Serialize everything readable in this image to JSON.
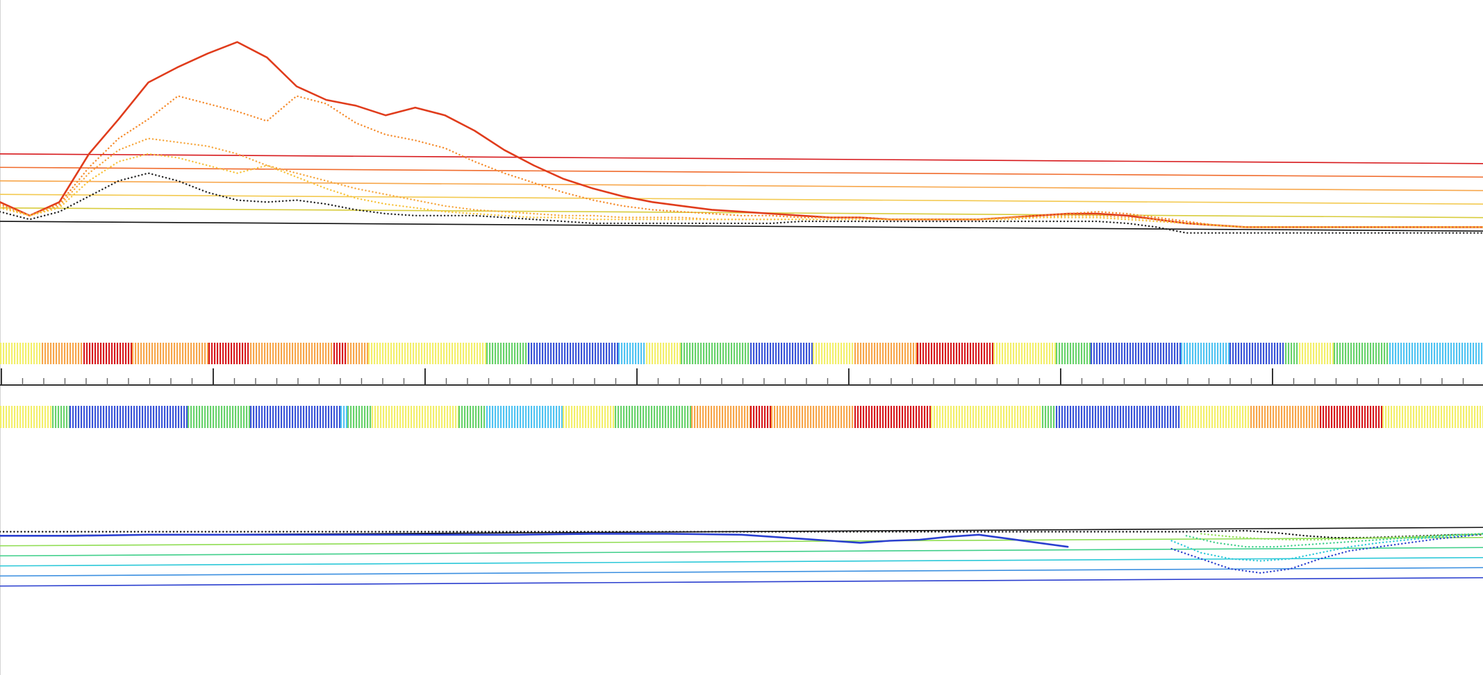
{
  "chart_data": [
    {
      "type": "line",
      "panel": "upper-signal-track",
      "x_range": [
        0,
        1000
      ],
      "y_range": [
        0,
        100
      ],
      "threshold_lines": [
        {
          "name": "",
          "color": "#d7191c",
          "level": 40
        },
        {
          "name": "",
          "color": "#f06b2c",
          "level": 33
        },
        {
          "name": "",
          "color": "#f7a64a",
          "level": 26
        },
        {
          "name": "",
          "color": "#f3c94f",
          "level": 19
        },
        {
          "name": "",
          "color": "#d8cc3c",
          "level": 12
        },
        {
          "name": "",
          "color": "#111111",
          "level": 5
        }
      ],
      "series": [
        {
          "color": "#e03c1c",
          "style": "solid",
          "x": [
            0,
            20,
            40,
            60,
            80,
            100,
            120,
            140,
            160,
            180,
            200,
            220,
            240,
            260,
            280,
            300,
            320,
            340,
            360,
            380,
            400,
            420,
            440,
            460,
            480,
            500,
            520,
            540,
            560,
            580,
            600,
            620,
            640,
            660,
            680,
            700,
            720,
            740,
            760,
            780,
            800,
            820,
            840,
            860,
            880,
            900,
            920,
            940,
            960,
            980,
            1000
          ],
          "y": [
            15,
            8,
            15,
            40,
            58,
            77,
            85,
            92,
            98,
            90,
            75,
            68,
            65,
            60,
            64,
            60,
            52,
            42,
            34,
            27,
            22,
            18,
            15,
            13,
            11,
            10,
            9,
            8,
            7,
            7,
            6,
            6,
            6,
            6,
            7,
            8,
            9,
            9,
            8,
            6,
            4,
            3,
            2,
            2,
            2,
            2,
            2,
            2,
            2,
            2,
            2
          ]
        },
        {
          "color": "#f58a2a",
          "style": "dotted",
          "x": [
            0,
            20,
            40,
            60,
            80,
            100,
            120,
            140,
            160,
            180,
            200,
            220,
            240,
            260,
            280,
            300,
            320,
            340,
            360,
            380,
            400,
            420,
            440,
            460,
            480,
            500,
            520,
            540,
            560,
            580,
            600,
            620,
            640,
            660,
            680,
            700,
            720,
            740,
            760,
            780,
            800,
            820,
            840,
            860,
            880,
            900,
            920,
            940,
            960,
            980,
            1000
          ],
          "y": [
            14,
            8,
            14,
            33,
            48,
            58,
            70,
            66,
            62,
            57,
            70,
            66,
            56,
            50,
            47,
            43,
            36,
            30,
            25,
            20,
            16,
            13,
            11,
            10,
            9,
            8,
            8,
            7,
            7,
            7,
            6,
            6,
            6,
            6,
            7,
            8,
            9,
            10,
            9,
            7,
            5,
            3,
            2,
            2,
            2,
            2,
            2,
            2,
            2,
            2,
            2
          ]
        },
        {
          "color": "#f6a63c",
          "style": "dotted",
          "x": [
            0,
            20,
            40,
            60,
            80,
            100,
            120,
            140,
            160,
            180,
            200,
            220,
            240,
            260,
            280,
            300,
            320,
            340,
            360,
            380,
            400,
            420,
            440,
            460,
            480,
            500,
            520,
            540,
            560,
            580,
            600,
            620,
            640,
            660,
            680,
            700,
            720,
            740,
            760,
            780,
            800,
            820,
            840,
            860,
            880,
            900,
            920,
            940,
            960,
            980,
            1000
          ],
          "y": [
            13,
            8,
            13,
            30,
            42,
            48,
            46,
            44,
            40,
            34,
            30,
            26,
            22,
            19,
            16,
            13,
            11,
            10,
            9,
            8,
            8,
            7,
            7,
            7,
            6,
            6,
            6,
            6,
            6,
            6,
            6,
            6,
            6,
            6,
            7,
            7,
            8,
            8,
            7,
            6,
            4,
            3,
            2,
            2,
            2,
            2,
            2,
            2,
            2,
            2,
            2
          ]
        },
        {
          "color": "#f7c23a",
          "style": "dotted",
          "x": [
            0,
            20,
            40,
            60,
            80,
            100,
            120,
            140,
            160,
            180,
            200,
            220,
            240,
            260,
            280,
            300,
            320,
            340,
            360,
            380,
            400,
            420,
            440,
            460,
            480,
            500,
            520,
            540,
            560,
            580,
            600,
            620,
            640,
            660,
            680,
            700,
            720,
            740,
            760,
            780,
            800,
            820,
            840,
            860,
            880,
            900,
            920,
            940,
            960,
            980,
            1000
          ],
          "y": [
            12,
            8,
            12,
            26,
            36,
            40,
            38,
            34,
            30,
            34,
            28,
            22,
            17,
            14,
            12,
            10,
            9,
            8,
            7,
            7,
            6,
            6,
            6,
            6,
            6,
            6,
            6,
            6,
            6,
            6,
            6,
            6,
            6,
            6,
            6,
            7,
            7,
            7,
            6,
            5,
            4,
            3,
            2,
            2,
            2,
            2,
            2,
            2,
            2,
            2,
            2
          ]
        },
        {
          "color": "#222222",
          "style": "dotted",
          "x": [
            0,
            20,
            40,
            60,
            80,
            100,
            120,
            140,
            160,
            180,
            200,
            220,
            240,
            260,
            280,
            300,
            320,
            340,
            360,
            380,
            400,
            420,
            440,
            460,
            480,
            500,
            520,
            540,
            560,
            580,
            600,
            620,
            640,
            660,
            680,
            700,
            720,
            740,
            760,
            780,
            800,
            820,
            840,
            860,
            880,
            900,
            920,
            940,
            960,
            980,
            1000
          ],
          "y": [
            10,
            6,
            10,
            18,
            26,
            30,
            26,
            20,
            16,
            15,
            16,
            14,
            11,
            9,
            8,
            8,
            8,
            7,
            6,
            5,
            4,
            4,
            4,
            4,
            4,
            4,
            4,
            5,
            5,
            5,
            5,
            5,
            5,
            5,
            5,
            5,
            5,
            5,
            4,
            2,
            -1,
            -1,
            -1,
            -1,
            -1,
            -1,
            -1,
            -1,
            -1,
            -1,
            -1
          ]
        }
      ]
    },
    {
      "type": "heatmap",
      "panel": "color-band-top",
      "palette": [
        "#d7191c",
        "#f7a64a",
        "#f3ef6a",
        "#67d26a",
        "#4fc3f2",
        "#3a55d8"
      ],
      "segments": [
        {
          "x0": 0,
          "x1": 60,
          "level": 2
        },
        {
          "x0": 60,
          "x1": 120,
          "level": 1
        },
        {
          "x0": 120,
          "x1": 190,
          "level": 0
        },
        {
          "x0": 190,
          "x1": 300,
          "level": 1
        },
        {
          "x0": 300,
          "x1": 360,
          "level": 0
        },
        {
          "x0": 360,
          "x1": 480,
          "level": 1
        },
        {
          "x0": 480,
          "x1": 500,
          "level": 0
        },
        {
          "x0": 500,
          "x1": 530,
          "level": 1
        },
        {
          "x0": 530,
          "x1": 700,
          "level": 2
        },
        {
          "x0": 700,
          "x1": 760,
          "level": 3
        },
        {
          "x0": 760,
          "x1": 890,
          "level": 5
        },
        {
          "x0": 890,
          "x1": 930,
          "level": 4
        },
        {
          "x0": 930,
          "x1": 980,
          "level": 2
        },
        {
          "x0": 980,
          "x1": 1080,
          "level": 3
        },
        {
          "x0": 1080,
          "x1": 1170,
          "level": 5
        },
        {
          "x0": 1170,
          "x1": 1230,
          "level": 2
        },
        {
          "x0": 1230,
          "x1": 1320,
          "level": 1
        },
        {
          "x0": 1320,
          "x1": 1430,
          "level": 0
        },
        {
          "x0": 1430,
          "x1": 1520,
          "level": 2
        },
        {
          "x0": 1520,
          "x1": 1570,
          "level": 3
        },
        {
          "x0": 1570,
          "x1": 1700,
          "level": 5
        },
        {
          "x0": 1700,
          "x1": 1770,
          "level": 4
        },
        {
          "x0": 1770,
          "x1": 1850,
          "level": 5
        },
        {
          "x0": 1850,
          "x1": 1870,
          "level": 3
        },
        {
          "x0": 1870,
          "x1": 1920,
          "level": 2
        },
        {
          "x0": 1920,
          "x1": 2000,
          "level": 3
        },
        {
          "x0": 2000,
          "x1": 2135,
          "level": 4
        }
      ]
    },
    {
      "type": "axis",
      "panel": "position-ruler",
      "range": [
        0,
        70
      ],
      "major_every": 10,
      "minor_every": 1,
      "tick_labels": []
    },
    {
      "type": "heatmap",
      "panel": "color-band-bottom",
      "palette": [
        "#d7191c",
        "#f7a64a",
        "#f3ef6a",
        "#67d26a",
        "#4fc3f2",
        "#3a55d8"
      ],
      "segments": [
        {
          "x0": 0,
          "x1": 75,
          "level": 2
        },
        {
          "x0": 75,
          "x1": 100,
          "level": 3
        },
        {
          "x0": 100,
          "x1": 270,
          "level": 5
        },
        {
          "x0": 270,
          "x1": 360,
          "level": 3
        },
        {
          "x0": 360,
          "x1": 490,
          "level": 5
        },
        {
          "x0": 490,
          "x1": 500,
          "level": 4
        },
        {
          "x0": 500,
          "x1": 535,
          "level": 3
        },
        {
          "x0": 535,
          "x1": 660,
          "level": 2
        },
        {
          "x0": 660,
          "x1": 700,
          "level": 3
        },
        {
          "x0": 700,
          "x1": 810,
          "level": 4
        },
        {
          "x0": 810,
          "x1": 885,
          "level": 2
        },
        {
          "x0": 885,
          "x1": 995,
          "level": 3
        },
        {
          "x0": 995,
          "x1": 1080,
          "level": 1
        },
        {
          "x0": 1080,
          "x1": 1110,
          "level": 0
        },
        {
          "x0": 1110,
          "x1": 1230,
          "level": 1
        },
        {
          "x0": 1230,
          "x1": 1340,
          "level": 0
        },
        {
          "x0": 1340,
          "x1": 1500,
          "level": 2
        },
        {
          "x0": 1500,
          "x1": 1520,
          "level": 3
        },
        {
          "x0": 1520,
          "x1": 1700,
          "level": 5
        },
        {
          "x0": 1700,
          "x1": 1800,
          "level": 2
        },
        {
          "x0": 1800,
          "x1": 1900,
          "level": 1
        },
        {
          "x0": 1900,
          "x1": 1990,
          "level": 0
        },
        {
          "x0": 1990,
          "x1": 2135,
          "level": 2
        }
      ]
    },
    {
      "type": "line",
      "panel": "lower-signal-track",
      "x_range": [
        0,
        1000
      ],
      "y_range": [
        -100,
        0
      ],
      "threshold_lines": [
        {
          "name": "",
          "color": "#111111",
          "level": -5
        },
        {
          "name": "",
          "color": "#8fdd52",
          "level": -15
        },
        {
          "name": "",
          "color": "#3fcf8a",
          "level": -25
        },
        {
          "name": "",
          "color": "#2bc8d8",
          "level": -35
        },
        {
          "name": "",
          "color": "#3b8fe0",
          "level": -45
        },
        {
          "name": "",
          "color": "#2a3fcf",
          "level": -55
        }
      ],
      "series": [
        {
          "color": "#111111",
          "style": "dotted",
          "x": [
            0,
            50,
            100,
            150,
            200,
            250,
            300,
            350,
            400,
            450,
            500,
            550,
            600,
            650,
            700,
            750,
            800,
            820,
            840,
            860,
            880,
            900,
            920,
            940,
            960,
            980,
            1000
          ],
          "y": [
            -1,
            -1,
            -1,
            -1,
            -1,
            -1,
            -1,
            -1,
            -1,
            -1,
            -1,
            -1,
            -1,
            -1,
            -1,
            -1,
            -1,
            -0.5,
            0,
            -2,
            -5,
            -7,
            -7,
            -6,
            -5,
            -4,
            -4
          ]
        },
        {
          "color": "#2a3fcf",
          "style": "solid",
          "x": [
            0,
            50,
            100,
            150,
            200,
            250,
            300,
            350,
            400,
            450,
            500,
            520,
            540,
            560,
            580,
            600,
            620,
            640,
            660,
            680,
            700,
            720
          ],
          "y": [
            -5,
            -5,
            -4,
            -4,
            -4,
            -4,
            -4,
            -4,
            -3,
            -3,
            -4,
            -6,
            -8,
            -10,
            -12,
            -10,
            -9,
            -6,
            -4,
            -8,
            -12,
            -16
          ]
        },
        {
          "color": "#2a3fcf",
          "style": "dotted",
          "x": [
            790,
            810,
            830,
            850,
            870,
            890,
            910,
            930,
            950,
            970,
            990,
            1000
          ],
          "y": [
            -18,
            -28,
            -38,
            -42,
            -38,
            -28,
            -20,
            -16,
            -12,
            -8,
            -5,
            -3
          ]
        },
        {
          "color": "#2bc8d8",
          "style": "dotted",
          "x": [
            790,
            810,
            830,
            850,
            870,
            890,
            910,
            930,
            950,
            970,
            990,
            1000
          ],
          "y": [
            -10,
            -22,
            -28,
            -30,
            -28,
            -22,
            -16,
            -12,
            -9,
            -6,
            -4,
            -3
          ]
        },
        {
          "color": "#3fcf8a",
          "style": "dotted",
          "x": [
            800,
            820,
            840,
            860,
            880,
            900,
            920,
            940,
            960,
            980,
            1000
          ],
          "y": [
            -5,
            -12,
            -16,
            -16,
            -14,
            -12,
            -10,
            -8,
            -6,
            -4,
            -3
          ]
        },
        {
          "color": "#8fdd52",
          "style": "dotted",
          "x": [
            810,
            830,
            850,
            870,
            890,
            910,
            930,
            950,
            970,
            990,
            1000
          ],
          "y": [
            -3,
            -6,
            -8,
            -9,
            -9,
            -8,
            -7,
            -6,
            -5,
            -4,
            -3
          ]
        }
      ]
    }
  ]
}
